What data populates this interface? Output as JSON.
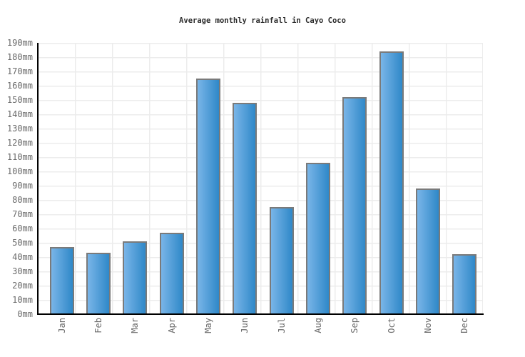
{
  "chart_data": {
    "type": "bar",
    "title": "Average monthly rainfall in Cayo Coco",
    "categories": [
      "Jan",
      "Feb",
      "Mar",
      "Apr",
      "May",
      "Jun",
      "Jul",
      "Aug",
      "Sep",
      "Oct",
      "Nov",
      "Dec"
    ],
    "values": [
      47,
      43,
      51,
      57,
      165,
      148,
      75,
      106,
      152,
      184,
      88,
      42
    ],
    "unit": "mm",
    "xlabel": "",
    "ylabel": "",
    "ylim": [
      0,
      190
    ],
    "y_tick_step": 10,
    "y_tick_labels": [
      "0mm",
      "10mm",
      "20mm",
      "30mm",
      "40mm",
      "50mm",
      "60mm",
      "70mm",
      "80mm",
      "90mm",
      "100mm",
      "110mm",
      "120mm",
      "130mm",
      "140mm",
      "150mm",
      "160mm",
      "170mm",
      "180mm",
      "190mm"
    ],
    "grid": "on",
    "legend": "none",
    "colors": {
      "bar_gradient_left": "#79b5e8",
      "bar_gradient_right": "#2f88c8",
      "bar_border": "#7a7a7a",
      "grid_line": "#ececec",
      "axis_line": "#000000",
      "tick_label": "#6b6b6b",
      "title": "#2b2b2b",
      "background": "#ffffff"
    }
  }
}
